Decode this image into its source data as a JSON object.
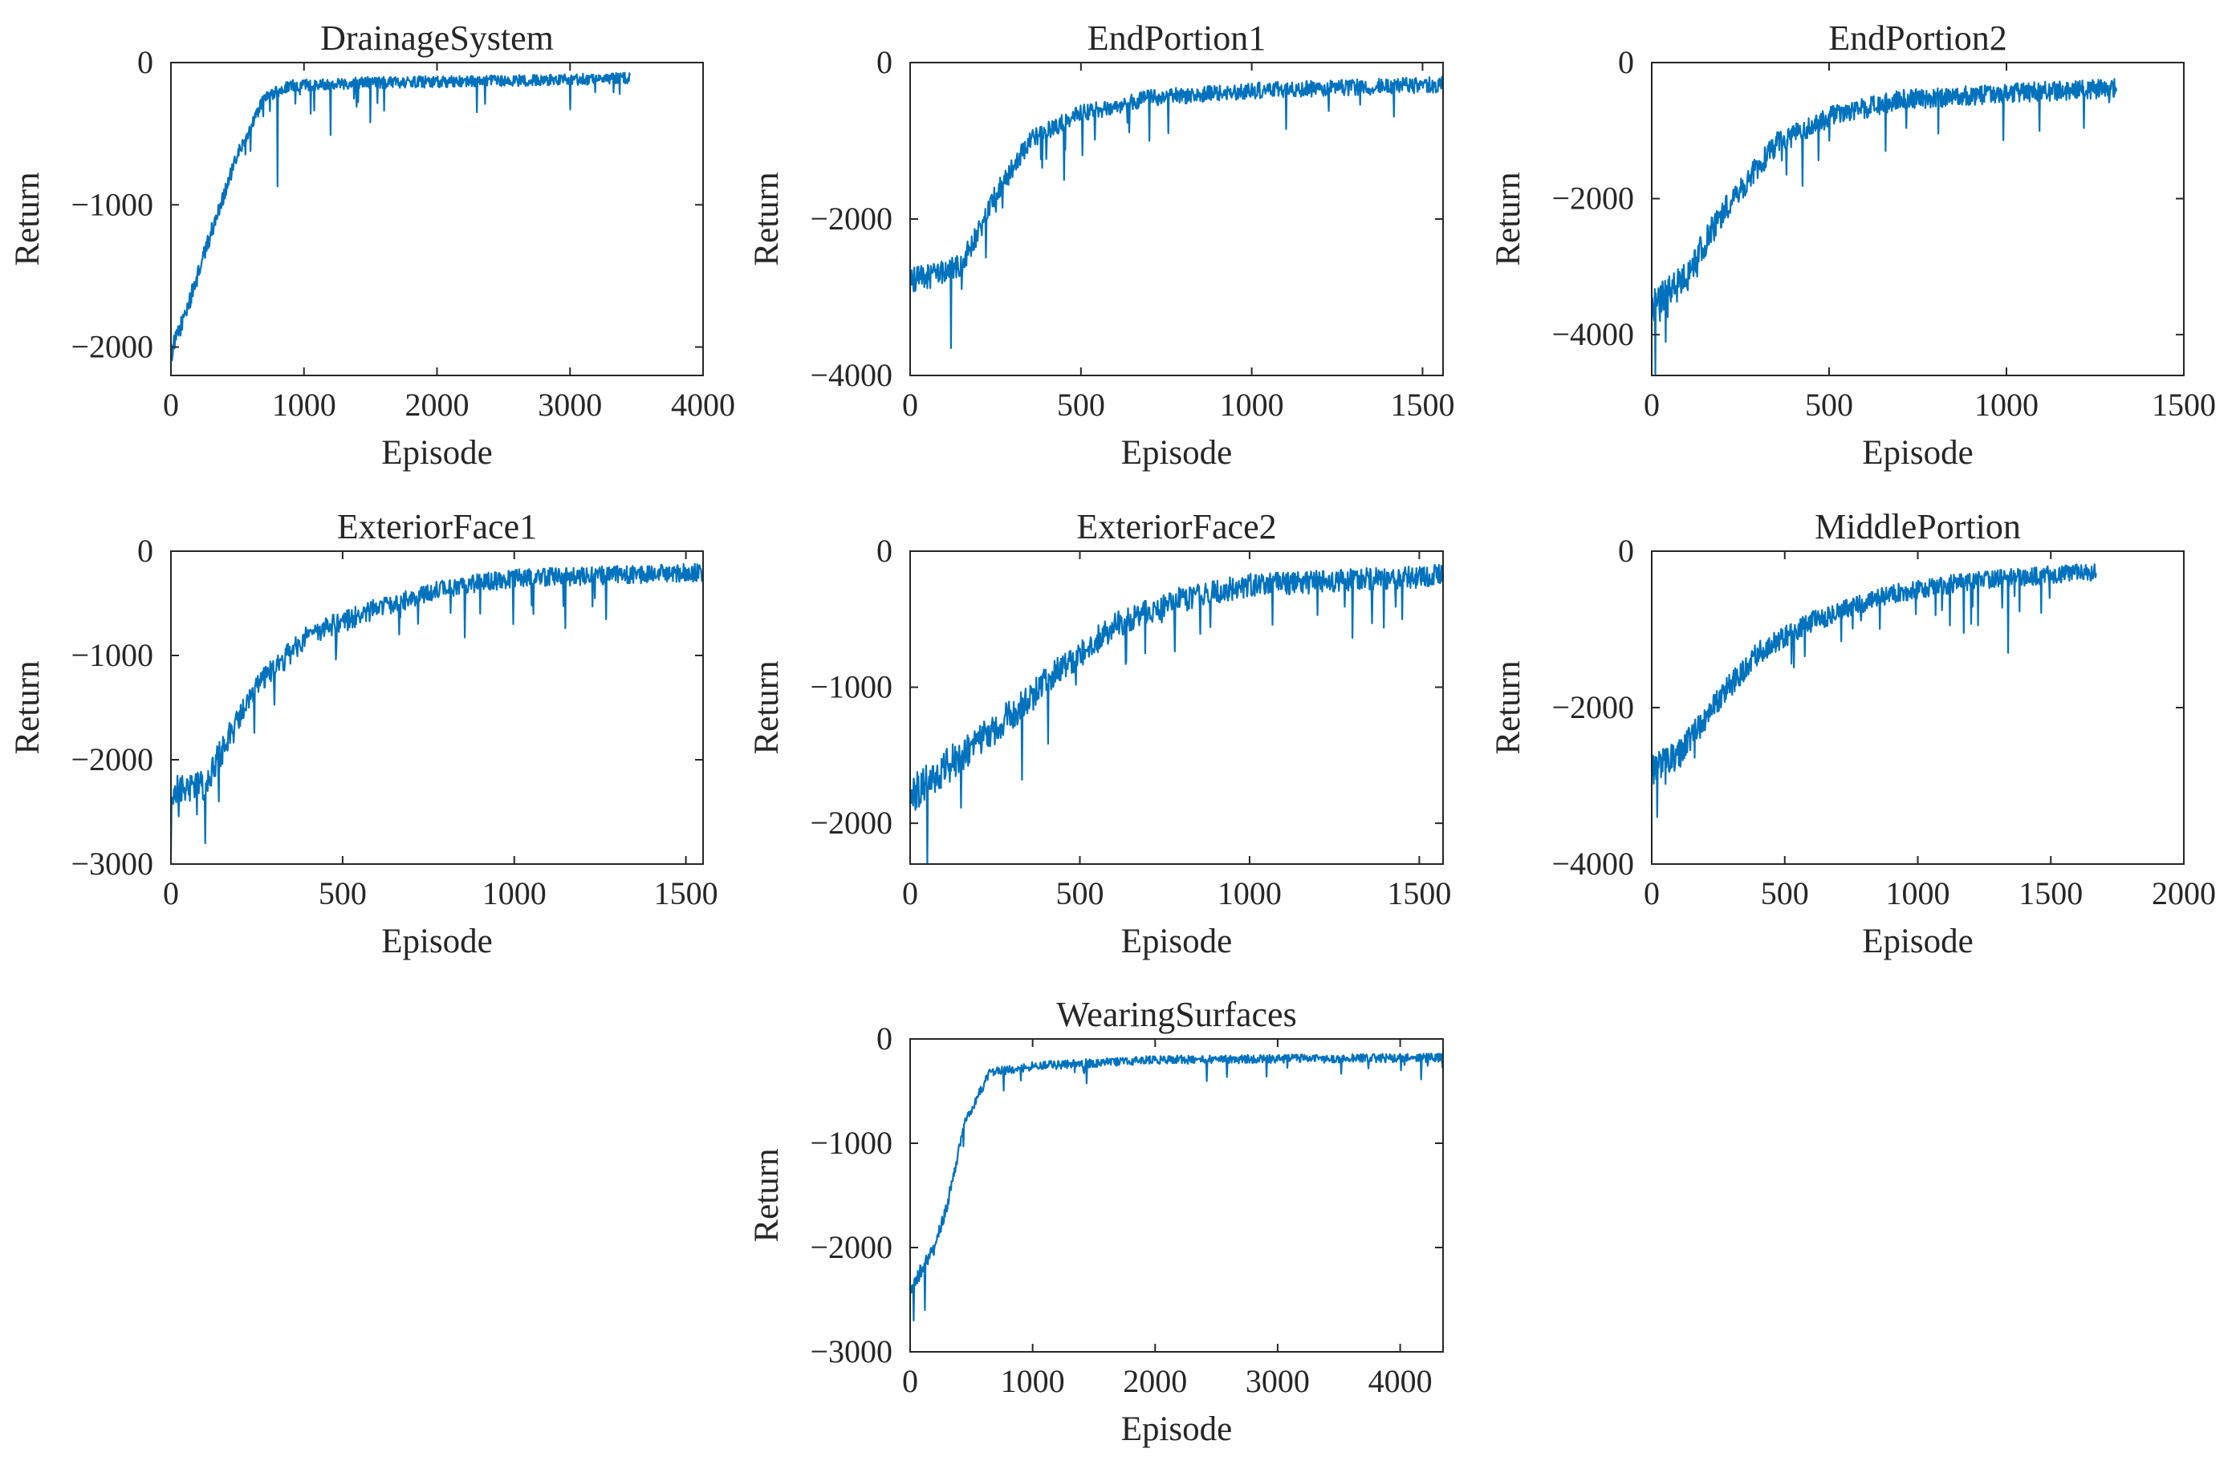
{
  "figure": {
    "line_color": "#0072BD",
    "axis_color": "#262626",
    "background": "#ffffff"
  },
  "chart_data": [
    {
      "type": "line",
      "title": "DrainageSystem",
      "xlabel": "Episode",
      "ylabel": "Return",
      "xlim": [
        0,
        4000
      ],
      "ylim": [
        -2200,
        0
      ],
      "xticks": [
        0,
        1000,
        2000,
        3000,
        4000
      ],
      "yticks": [
        0,
        -1000,
        -2000
      ],
      "x_end": 3450,
      "trend": [
        [
          0,
          -2050
        ],
        [
          150,
          -1650
        ],
        [
          300,
          -1200
        ],
        [
          500,
          -650
        ],
        [
          700,
          -250
        ],
        [
          900,
          -160
        ],
        [
          1500,
          -140
        ],
        [
          2500,
          -130
        ],
        [
          3450,
          -110
        ]
      ],
      "noise": 70,
      "y_min": -2200,
      "dips": [
        [
          800,
          -870
        ],
        [
          1200,
          -510
        ],
        [
          1500,
          -420
        ],
        [
          2300,
          -350
        ],
        [
          3000,
          -330
        ]
      ]
    },
    {
      "type": "line",
      "title": "EndPortion1",
      "xlabel": "Episode",
      "ylabel": "Return",
      "xlim": [
        0,
        1560
      ],
      "ylim": [
        -4000,
        0
      ],
      "xticks": [
        0,
        500,
        1000,
        1500
      ],
      "yticks": [
        0,
        -2000,
        -4000
      ],
      "x_end": 1560,
      "trend": [
        [
          0,
          -2800
        ],
        [
          150,
          -2600
        ],
        [
          250,
          -1700
        ],
        [
          350,
          -1000
        ],
        [
          500,
          -650
        ],
        [
          700,
          -450
        ],
        [
          1000,
          -360
        ],
        [
          1560,
          -280
        ]
      ],
      "noise": 170,
      "y_min": -4000,
      "dips": [
        [
          120,
          -3650
        ],
        [
          450,
          -1500
        ],
        [
          700,
          -1000
        ],
        [
          1100,
          -850
        ]
      ]
    },
    {
      "type": "line",
      "title": "EndPortion2",
      "xlabel": "Episode",
      "ylabel": "Return",
      "xlim": [
        0,
        1500
      ],
      "ylim": [
        -4600,
        0
      ],
      "xticks": [
        0,
        500,
        1000,
        1500
      ],
      "yticks": [
        0,
        -2000,
        -4000
      ],
      "x_end": 1310,
      "trend": [
        [
          0,
          -3600
        ],
        [
          100,
          -3100
        ],
        [
          200,
          -2200
        ],
        [
          350,
          -1200
        ],
        [
          500,
          -800
        ],
        [
          700,
          -550
        ],
        [
          1000,
          -450
        ],
        [
          1310,
          -380
        ]
      ],
      "noise": 240,
      "y_min": -4600,
      "dips": [
        [
          10,
          -4580
        ],
        [
          660,
          -1300
        ],
        [
          500,
          -1150
        ]
      ]
    },
    {
      "type": "line",
      "title": "ExteriorFace1",
      "xlabel": "Episode",
      "ylabel": "Return",
      "xlim": [
        0,
        1550
      ],
      "ylim": [
        -3000,
        0
      ],
      "xticks": [
        0,
        500,
        1000,
        1500
      ],
      "yticks": [
        0,
        -1000,
        -2000,
        -3000
      ],
      "x_end": 1550,
      "trend": [
        [
          0,
          -2300
        ],
        [
          100,
          -2250
        ],
        [
          150,
          -1900
        ],
        [
          250,
          -1300
        ],
        [
          400,
          -800
        ],
        [
          600,
          -550
        ],
        [
          800,
          -350
        ],
        [
          1000,
          -260
        ],
        [
          1550,
          -200
        ]
      ],
      "noise": 150,
      "y_min": -3000,
      "dips": [
        [
          0,
          -2900
        ],
        [
          100,
          -2800
        ],
        [
          900,
          -600
        ],
        [
          1050,
          -520
        ]
      ]
    },
    {
      "type": "line",
      "title": "ExteriorFace2",
      "xlabel": "Episode",
      "ylabel": "Return",
      "xlim": [
        0,
        1570
      ],
      "ylim": [
        -2300,
        0
      ],
      "xticks": [
        0,
        500,
        1000,
        1500
      ],
      "yticks": [
        0,
        -1000,
        -2000
      ],
      "x_end": 1570,
      "trend": [
        [
          0,
          -1800
        ],
        [
          100,
          -1600
        ],
        [
          300,
          -1200
        ],
        [
          450,
          -850
        ],
        [
          600,
          -550
        ],
        [
          800,
          -350
        ],
        [
          1000,
          -250
        ],
        [
          1570,
          -180
        ]
      ],
      "noise": 140,
      "y_min": -2300,
      "dips": [
        [
          50,
          -2300
        ],
        [
          330,
          -1680
        ],
        [
          1450,
          -500
        ],
        [
          1200,
          -470
        ]
      ]
    },
    {
      "type": "line",
      "title": "MiddlePortion",
      "xlabel": "Episode",
      "ylabel": "Return",
      "xlim": [
        0,
        2000
      ],
      "ylim": [
        -4000,
        0
      ],
      "xticks": [
        0,
        500,
        1000,
        1500,
        2000
      ],
      "yticks": [
        0,
        -2000,
        -4000
      ],
      "x_end": 1670,
      "trend": [
        [
          0,
          -2800
        ],
        [
          100,
          -2600
        ],
        [
          250,
          -1900
        ],
        [
          400,
          -1300
        ],
        [
          600,
          -900
        ],
        [
          900,
          -550
        ],
        [
          1200,
          -380
        ],
        [
          1670,
          -260
        ]
      ],
      "noise": 190,
      "y_min": -4000,
      "dips": [
        [
          20,
          -3400
        ],
        [
          1340,
          -1300
        ],
        [
          1120,
          -950
        ],
        [
          1200,
          -930
        ]
      ]
    },
    {
      "type": "line",
      "title": "WearingSurfaces",
      "xlabel": "Episode",
      "ylabel": "Return",
      "xlim": [
        0,
        4350
      ],
      "ylim": [
        -3000,
        0
      ],
      "xticks": [
        0,
        1000,
        2000,
        3000,
        4000
      ],
      "yticks": [
        0,
        -1000,
        -2000,
        -3000
      ],
      "x_end": 4350,
      "trend": [
        [
          0,
          -2400
        ],
        [
          200,
          -2000
        ],
        [
          300,
          -1600
        ],
        [
          450,
          -800
        ],
        [
          650,
          -320
        ],
        [
          1000,
          -260
        ],
        [
          2000,
          -200
        ],
        [
          4350,
          -180
        ]
      ],
      "noise": 70,
      "y_min": -3000,
      "dips": [
        [
          30,
          -2700
        ],
        [
          120,
          -2600
        ]
      ]
    }
  ]
}
